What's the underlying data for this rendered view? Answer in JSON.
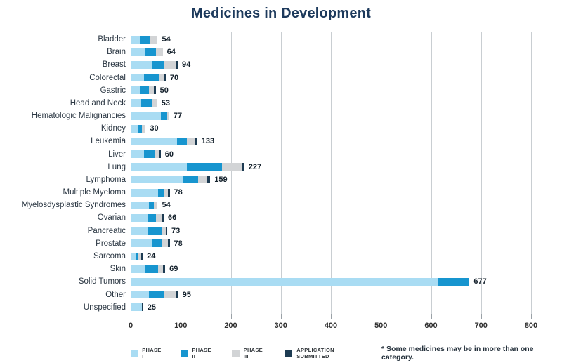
{
  "title": "Medicines in Development",
  "note": "* Some medicines may be in more than one category.",
  "colors": {
    "phase_i": "#a9dcf3",
    "phase_ii": "#1795cf",
    "phase_iii": "#d2d4d6",
    "application_submitted": "#1d3b52",
    "title_text": "#1d3a5c",
    "gridline": "#c9ced2"
  },
  "chart_data": {
    "type": "bar",
    "subtype": "horizontal-stacked",
    "title": "Medicines in Development",
    "xlabel": "",
    "ylabel": "",
    "xlim": [
      0,
      800
    ],
    "grid": true,
    "legend_position": "bottom",
    "categories": [
      "Bladder",
      "Brain",
      "Breast",
      "Colorectal",
      "Gastric",
      "Head and Neck",
      "Hematologic Malignancies",
      "Kidney",
      "Leukemia",
      "Liver",
      "Lung",
      "Lymphoma",
      "Multiple Myeloma",
      "Myelosdysplastic Syndromes",
      "Ovarian",
      "Pancreatic",
      "Prostate",
      "Sarcoma",
      "Skin",
      "Solid Tumors",
      "Other",
      "Unspecified"
    ],
    "totals": [
      54,
      64,
      94,
      70,
      50,
      53,
      77,
      30,
      133,
      60,
      227,
      159,
      78,
      54,
      66,
      73,
      78,
      24,
      69,
      677,
      95,
      25
    ],
    "series": [
      {
        "name": "PHASE I",
        "color": "#a9dcf3",
        "values": [
          18,
          28,
          44,
          27,
          19,
          21,
          60,
          14,
          92,
          26,
          112,
          105,
          55,
          36,
          33,
          35,
          44,
          10,
          28,
          614,
          36,
          22
        ]
      },
      {
        "name": "PHASE II",
        "color": "#1795cf",
        "values": [
          22,
          22,
          24,
          31,
          17,
          21,
          13,
          8,
          20,
          22,
          70,
          30,
          13,
          11,
          17,
          28,
          19,
          6,
          27,
          63,
          32,
          0
        ]
      },
      {
        "name": "PHASE III",
        "color": "#d2d4d6",
        "values": [
          14,
          14,
          22,
          10,
          10,
          11,
          4,
          8,
          17,
          10,
          40,
          18,
          7,
          5,
          13,
          8,
          11,
          5,
          10,
          0,
          23,
          0
        ]
      },
      {
        "name": "APPLICATION SUBMITTED",
        "color": "#1d3b52",
        "values": [
          0,
          0,
          4,
          2,
          4,
          0,
          0,
          0,
          4,
          2,
          5,
          6,
          3,
          2,
          3,
          2,
          4,
          3,
          4,
          0,
          4,
          3
        ]
      }
    ],
    "x_axis": {
      "ticks": [
        0,
        100,
        200,
        300,
        400,
        500,
        600,
        700,
        800
      ]
    }
  }
}
